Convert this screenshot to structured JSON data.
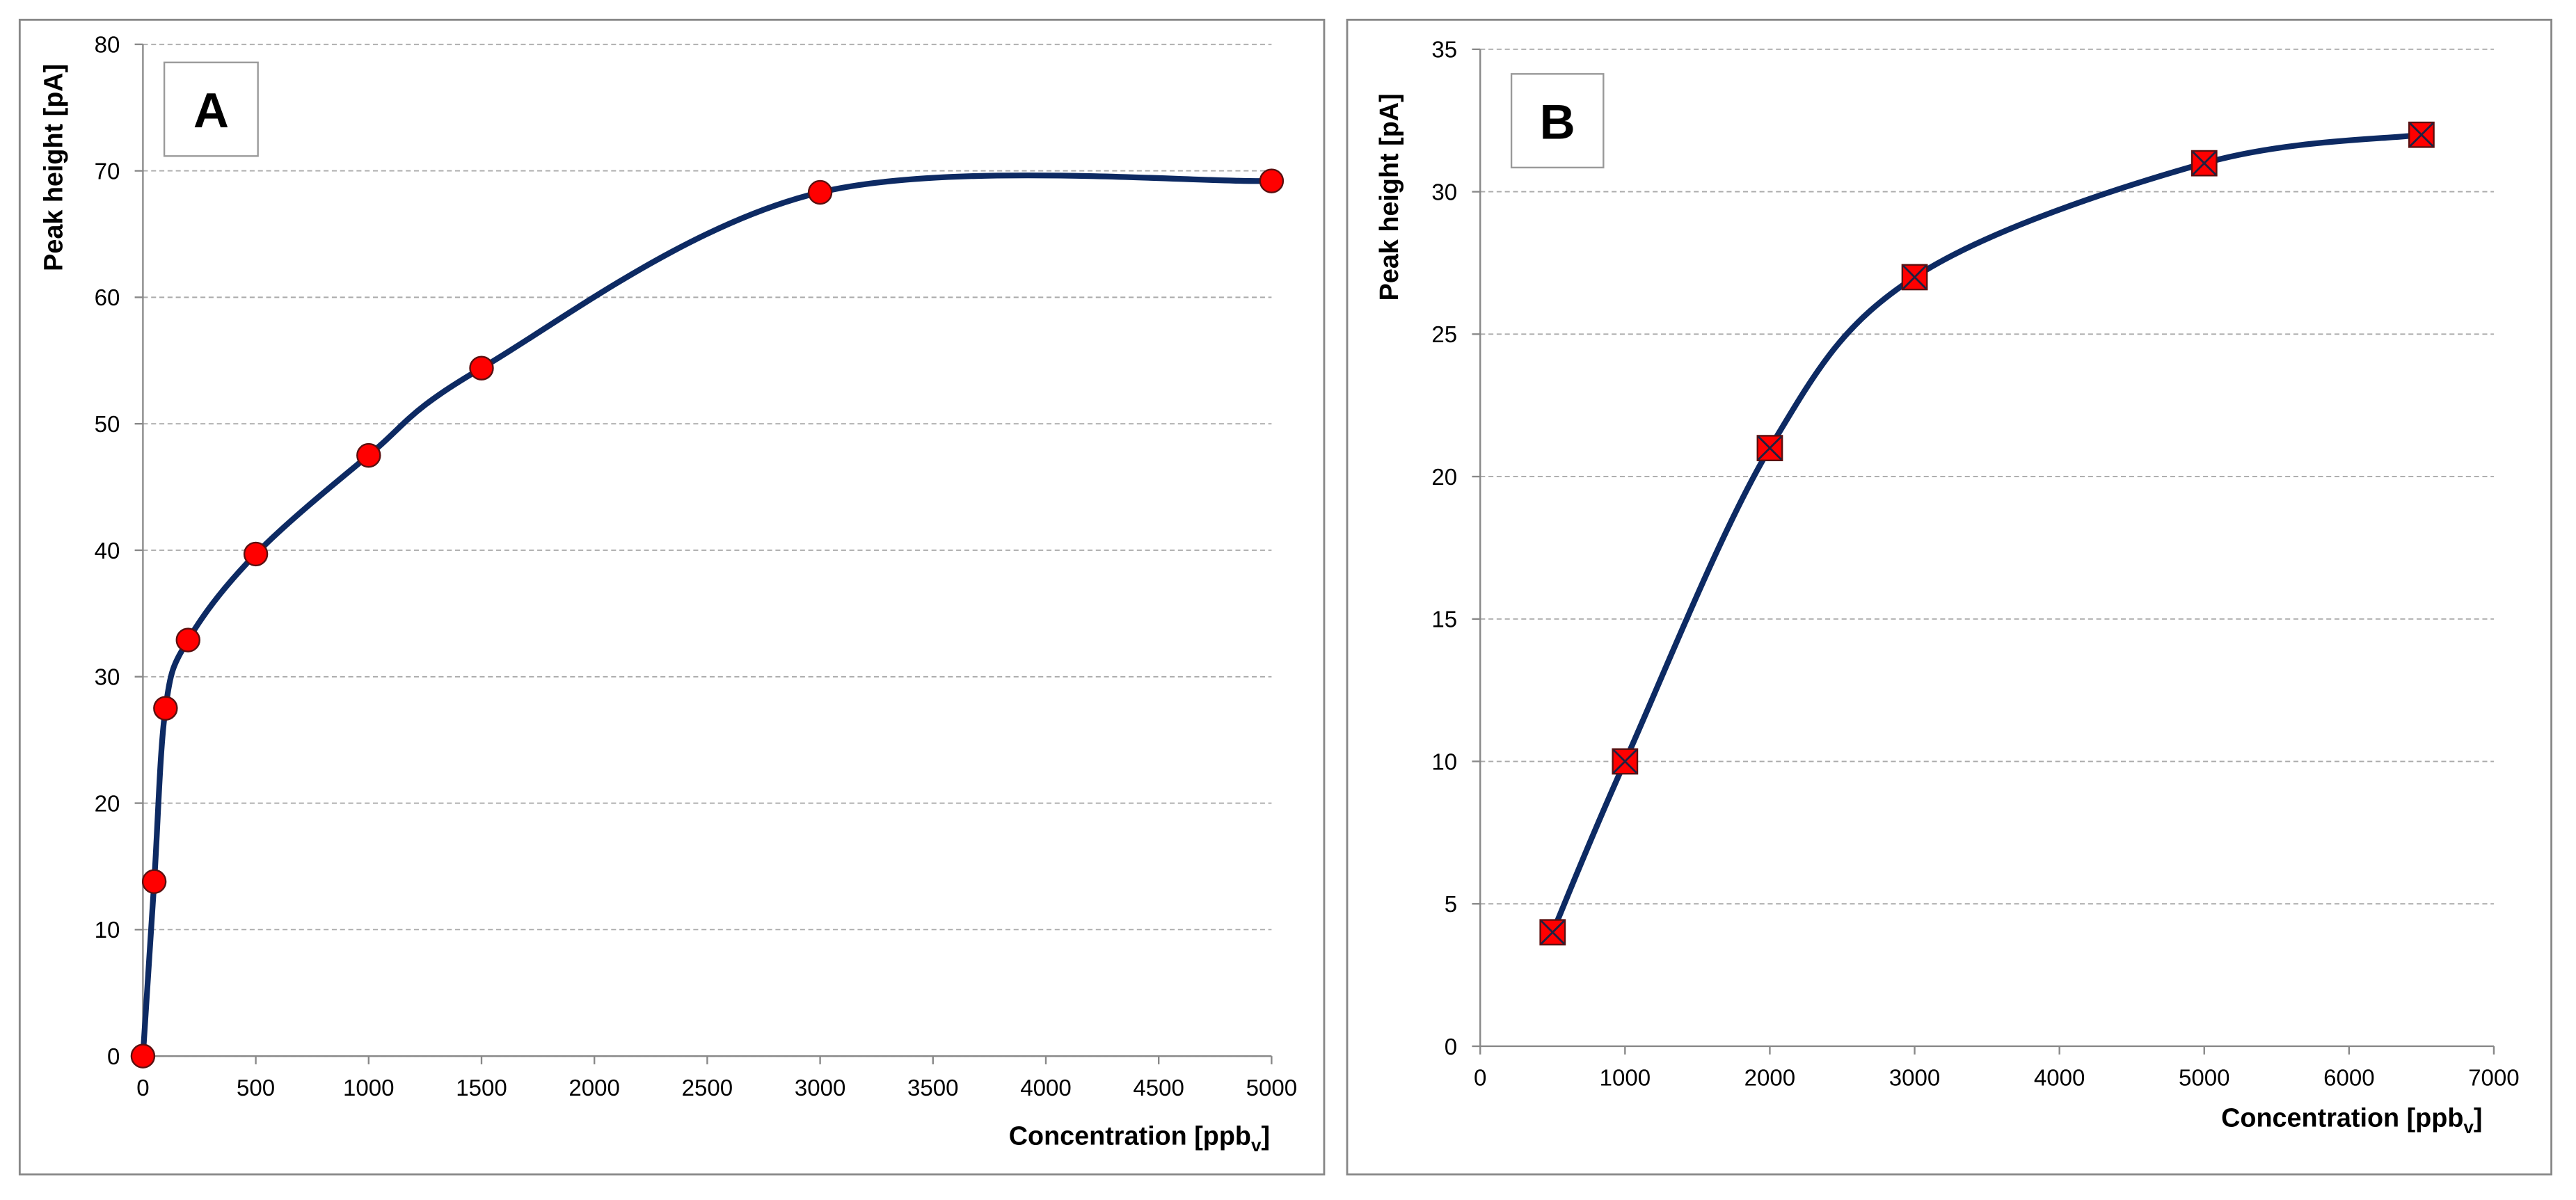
{
  "chart_data": [
    {
      "type": "line",
      "panel_label": "A",
      "y_label": "Peak height [pA]",
      "x_label": [
        "Concentration  [ppb",
        "v",
        "]"
      ],
      "x": [
        0,
        50,
        100,
        200,
        500,
        1000,
        1500,
        3000,
        5000
      ],
      "series": [
        {
          "values": [
            0,
            13.8,
            27.5,
            32.9,
            39.7,
            47.5,
            54.4,
            68.3,
            69.2
          ],
          "color": "#0d2a63",
          "marker": "circle",
          "marker_color": "#ff0000"
        }
      ],
      "xlim": [
        0,
        5000
      ],
      "xticks": [
        0,
        500,
        1000,
        1500,
        2000,
        2500,
        3000,
        3500,
        4000,
        4500,
        5000
      ],
      "ylim": [
        0,
        80
      ],
      "yticks": [
        0,
        10,
        20,
        30,
        40,
        50,
        60,
        70,
        80
      ],
      "grid": true,
      "smooth": true
    },
    {
      "type": "line",
      "panel_label": "B",
      "y_label": "Peak height [pA]",
      "x_label": [
        "Concentration [ppb",
        "v",
        "]"
      ],
      "x": [
        500,
        1000,
        2000,
        3000,
        5000,
        6500
      ],
      "series": [
        {
          "values": [
            4,
            10,
            21,
            27,
            31,
            32
          ],
          "color": "#0d2a63",
          "marker": "square-x",
          "marker_color": "#ff0000"
        }
      ],
      "xlim": [
        0,
        7000
      ],
      "xticks": [
        0,
        1000,
        2000,
        3000,
        4000,
        5000,
        6000,
        7000
      ],
      "ylim": [
        0,
        35
      ],
      "yticks": [
        0,
        5,
        10,
        15,
        20,
        25,
        30,
        35
      ],
      "grid": true,
      "smooth": true
    }
  ]
}
